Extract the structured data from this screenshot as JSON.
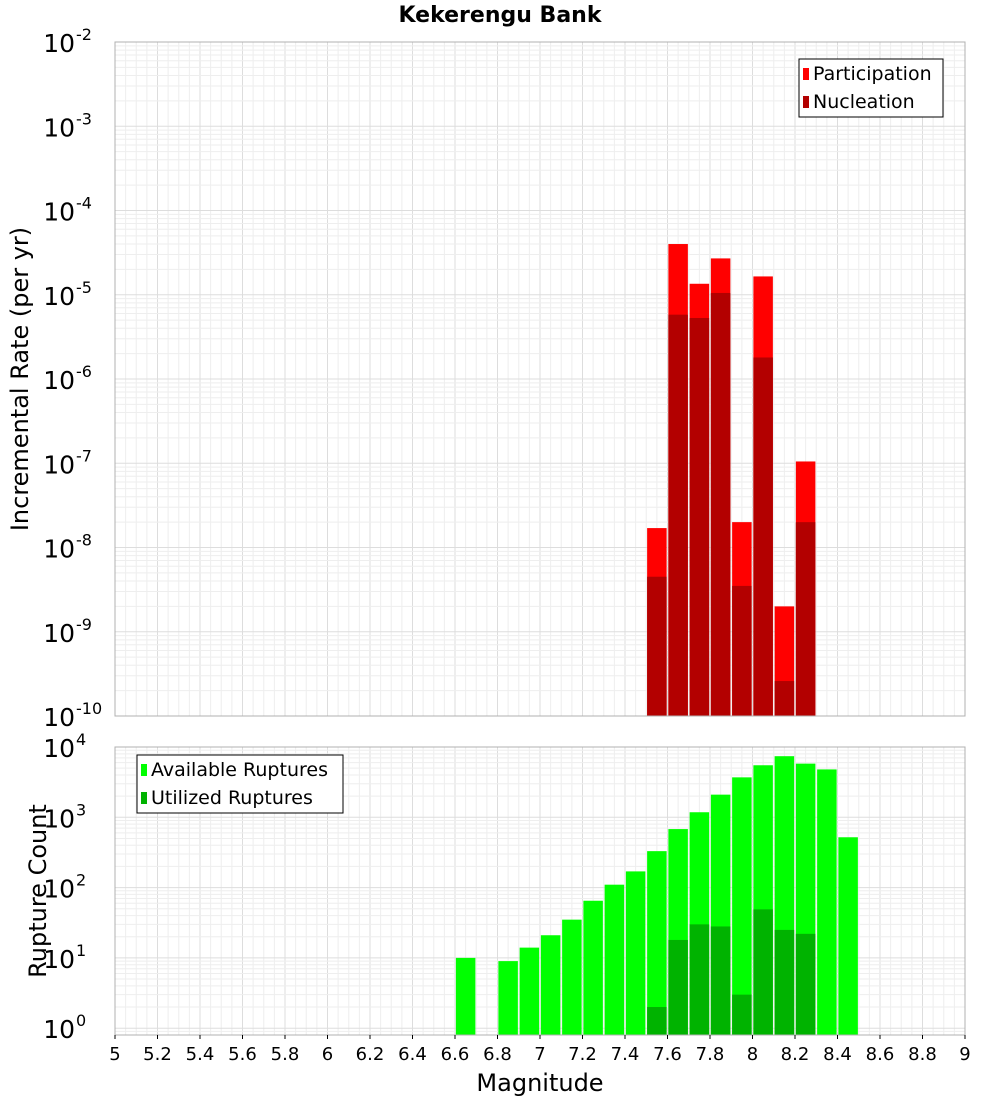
{
  "chart_data": [
    {
      "type": "bar",
      "title": "Kekerengu Bank",
      "xlabel": "",
      "ylabel": "Incremental Rate (per yr)",
      "yscale": "log",
      "ylim": [
        1e-10,
        0.01
      ],
      "xlim": [
        5,
        9
      ],
      "grid": true,
      "legend_position": "top-right",
      "y_ticks": [
        {
          "base": "10",
          "exp": "-10",
          "value": 1e-10
        },
        {
          "base": "10",
          "exp": "-9",
          "value": 1e-09
        },
        {
          "base": "10",
          "exp": "-8",
          "value": 1e-08
        },
        {
          "base": "10",
          "exp": "-7",
          "value": 1e-07
        },
        {
          "base": "10",
          "exp": "-6",
          "value": 1e-06
        },
        {
          "base": "10",
          "exp": "-5",
          "value": 1e-05
        },
        {
          "base": "10",
          "exp": "-4",
          "value": 0.0001
        },
        {
          "base": "10",
          "exp": "-3",
          "value": 0.001
        },
        {
          "base": "10",
          "exp": "-2",
          "value": 0.01
        }
      ],
      "series": [
        {
          "name": "Participation",
          "color": "#ff0000",
          "x": [
            7.55,
            7.65,
            7.75,
            7.85,
            7.95,
            8.05,
            8.15,
            8.25
          ],
          "values": [
            1.7e-08,
            4e-05,
            1.35e-05,
            2.7e-05,
            2e-08,
            1.65e-05,
            2e-09,
            1.05e-07
          ]
        },
        {
          "name": "Nucleation",
          "color": "#b30000",
          "x": [
            7.55,
            7.65,
            7.75,
            7.85,
            7.95,
            8.05,
            8.15,
            8.25
          ],
          "values": [
            4.5e-09,
            5.8e-06,
            5.3e-06,
            1.05e-05,
            3.5e-09,
            1.8e-06,
            2.6e-10,
            2e-08
          ]
        }
      ]
    },
    {
      "type": "bar",
      "title": "",
      "xlabel": "Magnitude",
      "ylabel": "Rupture Count",
      "yscale": "log",
      "ylim": [
        0.8,
        10000
      ],
      "xlim": [
        5,
        9
      ],
      "grid": true,
      "legend_position": "top-left",
      "x_ticks": [
        "5",
        "5.2",
        "5.4",
        "5.6",
        "5.8",
        "6",
        "6.2",
        "6.4",
        "6.6",
        "6.8",
        "7",
        "7.2",
        "7.4",
        "7.6",
        "7.8",
        "8",
        "8.2",
        "8.4",
        "8.6",
        "8.8",
        "9"
      ],
      "y_ticks": [
        {
          "base": "10",
          "exp": "0",
          "value": 1
        },
        {
          "base": "10",
          "exp": "1",
          "value": 10
        },
        {
          "base": "10",
          "exp": "2",
          "value": 100
        },
        {
          "base": "10",
          "exp": "3",
          "value": 1000
        },
        {
          "base": "10",
          "exp": "4",
          "value": 10000
        }
      ],
      "series": [
        {
          "name": "Available Ruptures",
          "color": "#00ff00",
          "x": [
            6.65,
            6.85,
            6.95,
            7.05,
            7.15,
            7.25,
            7.35,
            7.45,
            7.55,
            7.65,
            7.75,
            7.85,
            7.95,
            8.05,
            8.15,
            8.25,
            8.35,
            8.45
          ],
          "values": [
            10,
            9,
            14,
            21,
            35,
            65,
            110,
            170,
            330,
            680,
            1180,
            2100,
            3700,
            5500,
            7400,
            5800,
            4800,
            520
          ]
        },
        {
          "name": "Utilized Ruptures",
          "color": "#00b300",
          "x": [
            7.55,
            7.65,
            7.75,
            7.85,
            7.95,
            8.05,
            8.15,
            8.25
          ],
          "values": [
            2,
            18,
            30,
            28,
            3,
            49,
            25,
            22
          ]
        }
      ]
    }
  ]
}
